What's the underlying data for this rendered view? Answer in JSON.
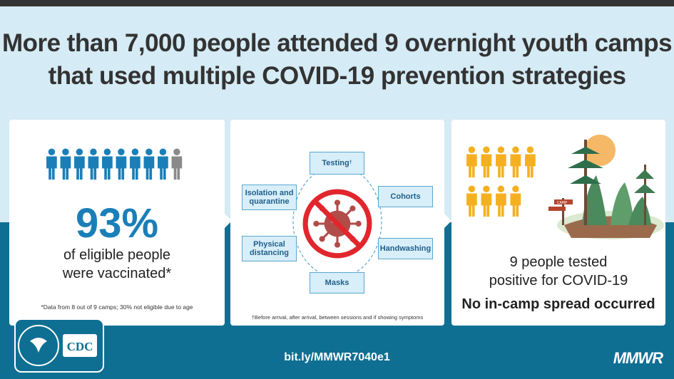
{
  "title": {
    "line1": "More than 7,000 people attended 9 overnight youth camps",
    "line2": "that used multiple COVID-19 prevention strategies"
  },
  "panel_vaccination": {
    "percentage": "93%",
    "description_line1": "of eligible people",
    "description_line2": "were vaccinated*",
    "footnote": "*Data from 8 out of 9 camps; 30% not eligible due to age",
    "vaccinated_fraction": 0.93,
    "colors": {
      "vaccinated": "#1a7fb8",
      "not_vaccinated": "#8a8a8a"
    }
  },
  "panel_strategies": {
    "testing": "Testing",
    "testing_mark": "†",
    "cohorts": "Cohorts",
    "handwashing": "Handwashing",
    "masks": "Masks",
    "physical_distancing": "Physical distancing",
    "isolation_quarantine": "Isolation and quarantine",
    "footnote": "†Before arrival, after arrival, between sessions and if showing symptoms",
    "center_icon": "no-virus-icon"
  },
  "panel_outcome": {
    "positive_line1": "9 people tested",
    "positive_line2": "positive for COVID-19",
    "spread": "No in-camp spread occurred",
    "positive_count": 9,
    "person_color": "#f5b021",
    "illustration": "camp-forest-illustration",
    "sign_label": "CAMP"
  },
  "footer": {
    "url": "bit.ly/MMWR7040e1",
    "publication": "MMWR",
    "agency_logo": "cdc-logo",
    "agency_text": "CDC"
  }
}
